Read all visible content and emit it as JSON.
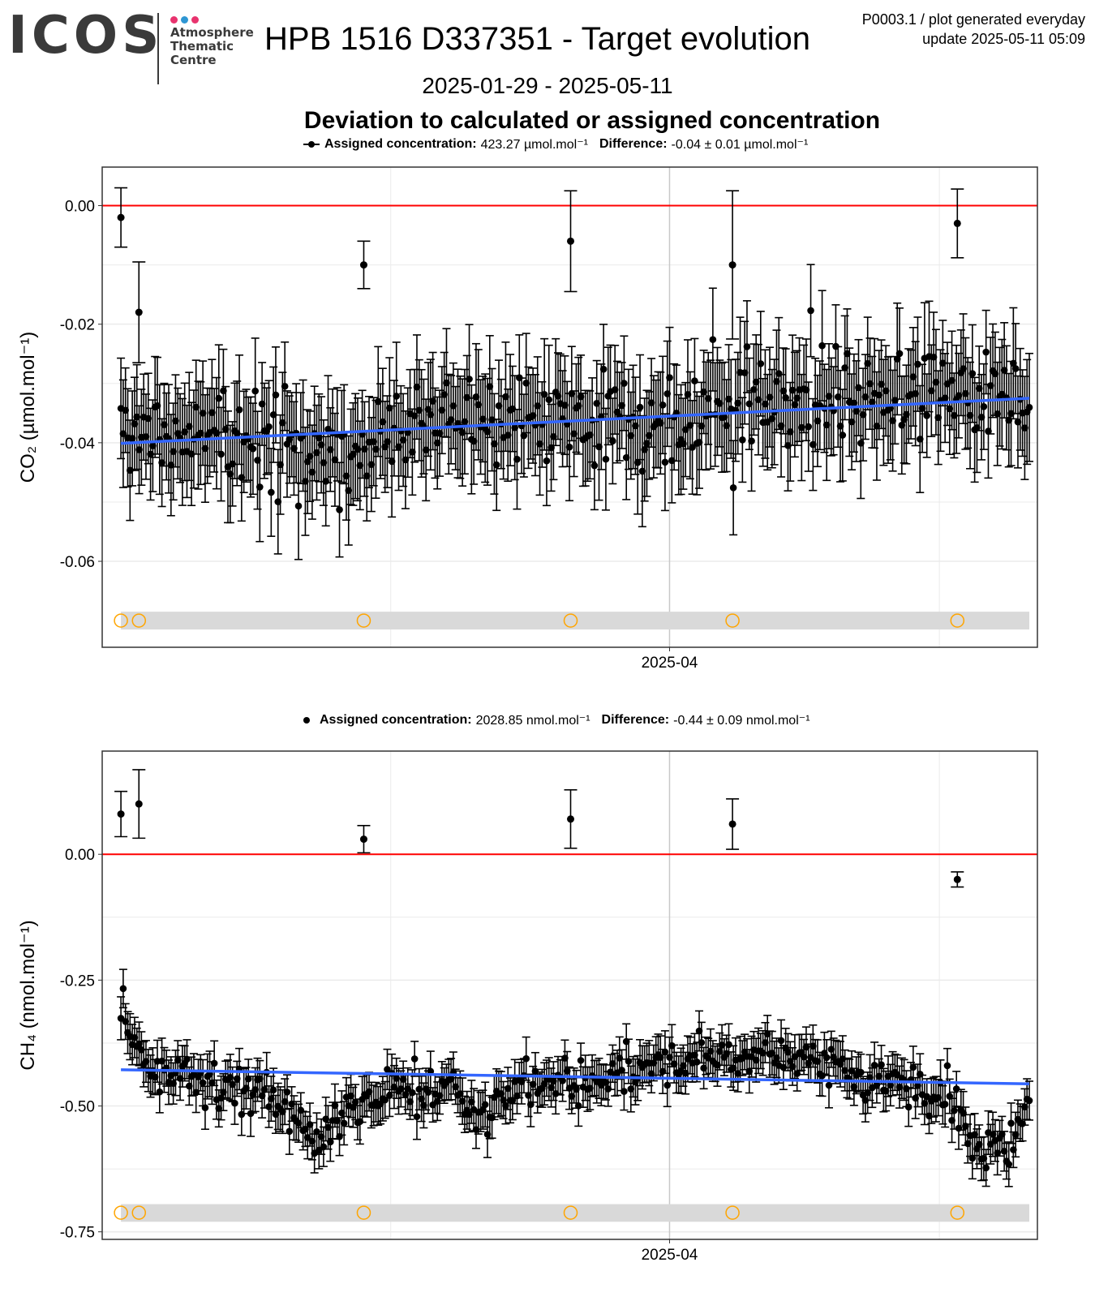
{
  "header": {
    "logo": {
      "wordmark": "ICOS",
      "tagline": [
        "Atmosphere",
        "Thematic",
        "Centre"
      ],
      "dot_colors": [
        "#e8336e",
        "#2e96d3",
        "#e8336e"
      ]
    },
    "title": "HPB 1516 D337351 - Target evolution",
    "meta_line1": "P0003.1 / plot generated everyday",
    "meta_line2": "update  2025-05-11 05:09",
    "date_range": "2025-01-29 - 2025-05-11",
    "subtitle": "Deviation to calculated or assigned concentration"
  },
  "colors": {
    "zero_line": "#ff0000",
    "trend_line": "#3366ff",
    "flag_marker": "#ffa500",
    "flag_band": "#d9d9d9",
    "grid": "#ebebeb",
    "points": "#000000"
  },
  "chart_data": [
    {
      "type": "scatter",
      "key": "co2",
      "info": {
        "assigned_label": "Assigned concentration:",
        "assigned_value": "423.27 µmol.mol⁻¹",
        "difference_label": "Difference:",
        "difference_value": "-0.04 ± 0.01 µmol.mol⁻¹"
      },
      "ylabel": "CO₂ (µmol.mol⁻¹)",
      "x_tick_label": "2025-04",
      "xlim": [
        "2025-01-29",
        "2025-05-11"
      ],
      "ylim": [
        -0.0745,
        0.0065
      ],
      "yticks": [
        0.0,
        -0.02,
        -0.04,
        -0.06
      ],
      "ytick_labels": [
        "0.00",
        "-0.02",
        "-0.04",
        "-0.06"
      ],
      "zero_line": 0,
      "trend": {
        "start": [
          "2025-01-30",
          -0.0401
        ],
        "end": [
          "2025-05-11",
          -0.0325
        ]
      },
      "flag_band": [
        -0.0715,
        -0.0685
      ],
      "flag_markers_y": -0.07,
      "flagged_dates": [
        "2025-01-30",
        "2025-02-01",
        "2025-02-26",
        "2025-03-21",
        "2025-04-08",
        "2025-05-03"
      ],
      "outliers": [
        {
          "x": "2025-01-30",
          "y": -0.002,
          "err": 0.005
        },
        {
          "x": "2025-02-01",
          "y": -0.018,
          "err": 0.0085
        },
        {
          "x": "2025-02-26",
          "y": -0.01,
          "err": 0.004
        },
        {
          "x": "2025-03-21",
          "y": -0.006,
          "err": 0.0085
        },
        {
          "x": "2025-04-08",
          "y": -0.01,
          "err": 0.0125
        },
        {
          "x": "2025-05-03",
          "y": -0.003,
          "err": 0.0058
        }
      ],
      "profile": [
        [
          "2025-01-30",
          -0.04
        ],
        [
          "2025-02-05",
          -0.039
        ],
        [
          "2025-02-15",
          -0.038
        ],
        [
          "2025-02-25",
          -0.042
        ],
        [
          "2025-03-05",
          -0.037
        ],
        [
          "2025-03-12",
          -0.036
        ],
        [
          "2025-03-25",
          -0.038
        ],
        [
          "2025-04-05",
          -0.035
        ],
        [
          "2025-04-15",
          -0.034
        ],
        [
          "2025-04-25",
          -0.032
        ],
        [
          "2025-05-05",
          -0.031
        ],
        [
          "2025-05-11",
          -0.033
        ]
      ],
      "noise": 0.004,
      "error_bar": 0.0082,
      "samples": 400,
      "seed": 7
    },
    {
      "type": "scatter",
      "key": "ch4",
      "info": {
        "assigned_label": "Assigned concentration:",
        "assigned_value": "2028.85 nmol.mol⁻¹",
        "difference_label": "Difference:",
        "difference_value": "-0.44 ± 0.09 nmol.mol⁻¹"
      },
      "ylabel": "CH₄ (nmol.mol⁻¹)",
      "x_tick_label": "2025-04",
      "xlim": [
        "2025-01-29",
        "2025-05-11"
      ],
      "ylim": [
        -0.765,
        0.205
      ],
      "yticks": [
        0.0,
        -0.25,
        -0.5,
        -0.75
      ],
      "ytick_labels": [
        "0.00",
        "-0.25",
        "-0.50",
        "-0.75"
      ],
      "zero_line": 0,
      "trend": {
        "start": [
          "2025-01-30",
          -0.428
        ],
        "end": [
          "2025-05-11",
          -0.456
        ]
      },
      "flag_band": [
        -0.73,
        -0.695
      ],
      "flag_markers_y": -0.712,
      "flagged_dates": [
        "2025-01-30",
        "2025-02-01",
        "2025-02-26",
        "2025-03-21",
        "2025-04-08",
        "2025-05-03"
      ],
      "outliers": [
        {
          "x": "2025-01-30",
          "y": 0.08,
          "err": 0.045
        },
        {
          "x": "2025-02-01",
          "y": 0.1,
          "err": 0.068
        },
        {
          "x": "2025-02-26",
          "y": 0.03,
          "err": 0.027
        },
        {
          "x": "2025-03-21",
          "y": 0.07,
          "err": 0.058
        },
        {
          "x": "2025-04-08",
          "y": 0.06,
          "err": 0.05
        },
        {
          "x": "2025-05-03",
          "y": -0.05,
          "err": 0.015
        }
      ],
      "profile": [
        [
          "2025-01-30",
          -0.29
        ],
        [
          "2025-01-31",
          -0.36
        ],
        [
          "2025-02-02",
          -0.44
        ],
        [
          "2025-02-10",
          -0.45
        ],
        [
          "2025-02-16",
          -0.49
        ],
        [
          "2025-02-21",
          -0.56
        ],
        [
          "2025-02-24",
          -0.52
        ],
        [
          "2025-02-28",
          -0.47
        ],
        [
          "2025-03-08",
          -0.46
        ],
        [
          "2025-03-11",
          -0.53
        ],
        [
          "2025-03-14",
          -0.47
        ],
        [
          "2025-03-25",
          -0.44
        ],
        [
          "2025-04-05",
          -0.4
        ],
        [
          "2025-04-15",
          -0.39
        ],
        [
          "2025-04-22",
          -0.43
        ],
        [
          "2025-04-30",
          -0.47
        ],
        [
          "2025-05-03",
          -0.5
        ],
        [
          "2025-05-05",
          -0.59
        ],
        [
          "2025-05-09",
          -0.57
        ],
        [
          "2025-05-11",
          -0.5
        ]
      ],
      "noise": 0.022,
      "error_bar": 0.04,
      "samples": 400,
      "seed": 13
    }
  ]
}
